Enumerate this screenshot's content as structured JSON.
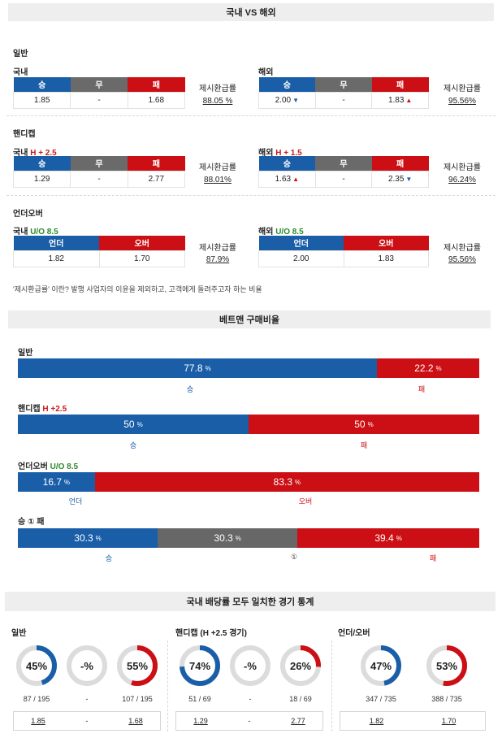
{
  "header": {
    "title": "국내 VS 해외"
  },
  "general": {
    "title": "일반",
    "domestic": {
      "label": "국내",
      "h_win": "승",
      "h_draw": "무",
      "h_lose": "패",
      "win": "1.85",
      "draw": "-",
      "lose": "1.68",
      "rr_label": "제시환급률",
      "rr": "88.05 %"
    },
    "foreign": {
      "label": "해외",
      "h_win": "승",
      "h_draw": "무",
      "h_lose": "패",
      "win": "2.00",
      "draw": "-",
      "lose": "1.83",
      "rr_label": "제시환급률",
      "rr": "95.56%"
    }
  },
  "handicap": {
    "title": "핸디캡",
    "domestic": {
      "label": "국내",
      "line": "H + 2.5",
      "h_win": "승",
      "h_draw": "무",
      "h_lose": "패",
      "win": "1.29",
      "draw": "-",
      "lose": "2.77",
      "rr_label": "제시환급률",
      "rr": "88.01%"
    },
    "foreign": {
      "label": "해외",
      "line": "H + 1.5",
      "h_win": "승",
      "h_draw": "무",
      "h_lose": "패",
      "win": "1.63",
      "draw": "-",
      "lose": "2.35",
      "rr_label": "제시환급률",
      "rr": "96.24%"
    }
  },
  "underover": {
    "title": "언더오버",
    "domestic": {
      "label": "국내",
      "line": "U/O 8.5",
      "h_under": "언더",
      "h_over": "오버",
      "under": "1.82",
      "over": "1.70",
      "rr_label": "제시환급률",
      "rr": "87.9%"
    },
    "foreign": {
      "label": "해외",
      "line": "U/O 8.5",
      "h_under": "언더",
      "h_over": "오버",
      "under": "2.00",
      "over": "1.83",
      "rr_label": "제시환급률",
      "rr": "95.56%"
    }
  },
  "note": "'제시환급률' 이란? 발행 사업자의 이윤을 제외하고, 고객에게 돌려주고자 하는 비율",
  "betman": {
    "title": "베트맨 구매비율",
    "unit": "%",
    "general": {
      "title": "일반",
      "a_val": "77.8",
      "a_pct": 77.8,
      "b_val": "22.2",
      "b_pct": 22.2,
      "a_lbl": "승",
      "b_lbl": "패"
    },
    "handicap": {
      "title": "핸디캡",
      "line": "H +2.5",
      "a_val": "50",
      "a_pct": 50,
      "b_val": "50",
      "b_pct": 50,
      "a_lbl": "승",
      "b_lbl": "패"
    },
    "underover": {
      "title": "언더오버",
      "line": "U/O 8.5",
      "a_val": "16.7",
      "a_pct": 16.7,
      "b_val": "83.3",
      "b_pct": 83.3,
      "a_lbl": "언더",
      "b_lbl": "오버"
    },
    "wdl": {
      "title": "승 ① 패",
      "a_val": "30.3",
      "a_pct": 30.3,
      "c_val": "30.3",
      "c_pct": 30.3,
      "b_val": "39.4",
      "b_pct": 39.4,
      "a_lbl": "승",
      "c_lbl": "①",
      "b_lbl": "패"
    }
  },
  "stats": {
    "title": "국내 배당률 모두 일치한 경기 통계",
    "general": {
      "title": "일반",
      "win": {
        "pct_text": "45%",
        "pct": 45,
        "count": "87 / 195",
        "odd": "1.85"
      },
      "draw": {
        "pct_text": "-%",
        "pct": 0,
        "count": "-",
        "odd": "-"
      },
      "lose": {
        "pct_text": "55%",
        "pct": 55,
        "count": "107 / 195",
        "odd": "1.68"
      }
    },
    "handicap": {
      "title": "핸디캡 (H +2.5 경기)",
      "win": {
        "pct_text": "74%",
        "pct": 74,
        "count": "51 / 69",
        "odd": "1.29"
      },
      "draw": {
        "pct_text": "-%",
        "pct": 0,
        "count": "-",
        "odd": "-"
      },
      "lose": {
        "pct_text": "26%",
        "pct": 26,
        "count": "18 / 69",
        "odd": "2.77"
      }
    },
    "underover": {
      "title": "언더/오버",
      "under": {
        "pct_text": "47%",
        "pct": 47,
        "count": "347 / 735",
        "odd": "1.82"
      },
      "over": {
        "pct_text": "53%",
        "pct": 53,
        "count": "388 / 735",
        "odd": "1.70"
      }
    }
  },
  "colors": {
    "blue": "#1a5ea8",
    "red": "#cc0f14",
    "gray": "#6a6a6a",
    "ring_bg": "#dcdcdc"
  }
}
